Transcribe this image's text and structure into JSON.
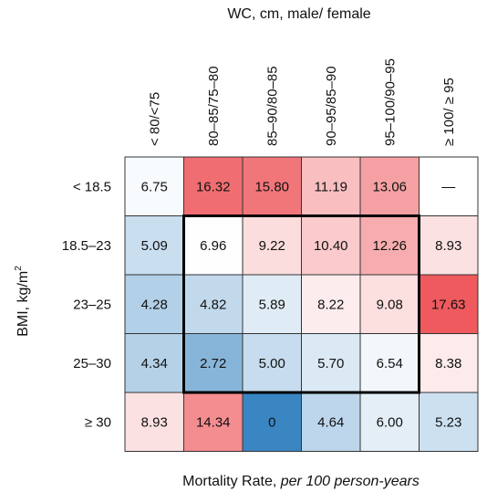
{
  "chart_data": {
    "type": "heatmap",
    "title": "WC, cm, male/ female",
    "xlabel": "WC, cm, male/ female",
    "ylabel": "BMI, kg/m",
    "ylabel_superscript": "2",
    "caption_prefix": "Mortality Rate, ",
    "caption_italic": "per 100 person-years",
    "columns": [
      "< 80/<75",
      "80–85/75–80",
      "85–90/80–85",
      "90–95/85–90",
      "95–100/90–95",
      "≥ 100/ ≥ 95"
    ],
    "rows": [
      "< 18.5",
      "18.5–23",
      "23–25",
      "25–30",
      "≥ 30"
    ],
    "cells": [
      [
        "6.75",
        "16.32",
        "15.80",
        "11.19",
        "13.06",
        "—"
      ],
      [
        "5.09",
        "6.96",
        "9.22",
        "10.40",
        "12.26",
        "8.93"
      ],
      [
        "4.28",
        "4.82",
        "5.89",
        "8.22",
        "9.08",
        "17.63"
      ],
      [
        "4.34",
        "2.72",
        "5.00",
        "5.70",
        "6.54",
        "8.38"
      ],
      [
        "8.93",
        "14.34",
        "0",
        "4.64",
        "6.00",
        "5.23"
      ]
    ],
    "values": [
      [
        6.75,
        16.32,
        15.8,
        11.19,
        13.06,
        null
      ],
      [
        5.09,
        6.96,
        9.22,
        10.4,
        12.26,
        8.93
      ],
      [
        4.28,
        4.82,
        5.89,
        8.22,
        9.08,
        17.63
      ],
      [
        4.34,
        2.72,
        5.0,
        5.7,
        6.54,
        8.38
      ],
      [
        8.93,
        14.34,
        0,
        4.64,
        6.0,
        5.23
      ]
    ],
    "colormap": {
      "center_value": 7.0,
      "low_color": "#3a86c3",
      "mid_color": "#ffffff",
      "high_color": "#ee5a5e"
    },
    "highlight_box": {
      "row_start": 1,
      "row_end": 3,
      "col_start": 1,
      "col_end": 4
    },
    "grid_color": "#333333",
    "highlight_color": "#000000"
  }
}
